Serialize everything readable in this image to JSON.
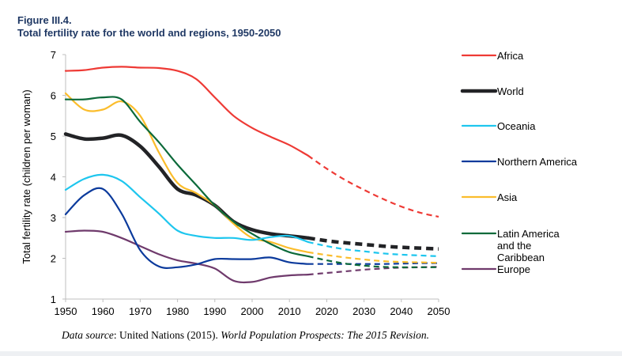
{
  "figure": {
    "label": "Figure III.4.",
    "title": "Total fertility rate for the world and regions, 1950-2050"
  },
  "source": {
    "prefix_italic": "Data source",
    "text": ": United Nations (2015). ",
    "publication_italic": "World Population Prospects: The 2015 Revision."
  },
  "chart_data": {
    "type": "line",
    "title": "Total fertility rate for the world and regions, 1950-2050",
    "xlabel": "",
    "ylabel": "Total fertility rate (children per woman)",
    "xlim": [
      1950,
      2050
    ],
    "ylim": [
      1,
      7
    ],
    "x_ticks": [
      "1950",
      "1960",
      "1970",
      "1980",
      "1990",
      "2000",
      "2010",
      "2020",
      "2030",
      "2040",
      "2050"
    ],
    "y_ticks": [
      "1",
      "2",
      "3",
      "4",
      "5",
      "6",
      "7"
    ],
    "grid": false,
    "legend_position": "right",
    "projection_start": 2015,
    "projection_style": "dashed after 2015",
    "x": [
      1950,
      1955,
      1960,
      1965,
      1970,
      1975,
      1980,
      1985,
      1990,
      1995,
      2000,
      2005,
      2010,
      2015,
      2020,
      2025,
      2030,
      2035,
      2040,
      2045,
      2050
    ],
    "series": [
      {
        "name": "Africa",
        "color": "#ee3a35",
        "emphasis": false,
        "values": [
          6.6,
          6.62,
          6.68,
          6.7,
          6.68,
          6.67,
          6.6,
          6.4,
          5.95,
          5.5,
          5.2,
          4.98,
          4.78,
          4.52,
          4.2,
          3.92,
          3.68,
          3.46,
          3.27,
          3.12,
          3.02
        ]
      },
      {
        "name": "World",
        "color": "#222326",
        "emphasis": true,
        "values": [
          5.05,
          4.93,
          4.95,
          5.02,
          4.75,
          4.25,
          3.7,
          3.55,
          3.3,
          2.9,
          2.7,
          2.6,
          2.55,
          2.5,
          2.43,
          2.38,
          2.34,
          2.3,
          2.27,
          2.25,
          2.23
        ]
      },
      {
        "name": "Oceania",
        "color": "#1ec6ee",
        "emphasis": false,
        "values": [
          3.68,
          3.95,
          4.05,
          3.9,
          3.5,
          3.1,
          2.68,
          2.55,
          2.5,
          2.5,
          2.45,
          2.52,
          2.55,
          2.4,
          2.3,
          2.22,
          2.17,
          2.12,
          2.09,
          2.07,
          2.05
        ]
      },
      {
        "name": "Northern America",
        "color": "#0b3a9c",
        "emphasis": false,
        "values": [
          3.08,
          3.55,
          3.7,
          3.1,
          2.2,
          1.8,
          1.78,
          1.85,
          1.98,
          1.98,
          1.98,
          2.02,
          1.9,
          1.86,
          1.86,
          1.86,
          1.86,
          1.86,
          1.87,
          1.88,
          1.88
        ]
      },
      {
        "name": "Asia",
        "color": "#fbbd2c",
        "emphasis": false,
        "values": [
          6.05,
          5.65,
          5.65,
          5.85,
          5.5,
          4.6,
          3.85,
          3.6,
          3.3,
          2.85,
          2.5,
          2.4,
          2.25,
          2.15,
          2.08,
          2.02,
          1.97,
          1.93,
          1.91,
          1.9,
          1.89
        ]
      },
      {
        "name": "Latin America and the Caribbean",
        "color": "#0c6a3a",
        "emphasis": false,
        "values": [
          5.9,
          5.9,
          5.95,
          5.9,
          5.35,
          4.85,
          4.3,
          3.8,
          3.3,
          2.9,
          2.6,
          2.35,
          2.15,
          2.05,
          1.95,
          1.87,
          1.82,
          1.79,
          1.78,
          1.78,
          1.78
        ]
      },
      {
        "name": "Europe",
        "color": "#6f3a6c",
        "emphasis": false,
        "values": [
          2.65,
          2.68,
          2.65,
          2.5,
          2.3,
          2.1,
          1.95,
          1.87,
          1.75,
          1.45,
          1.42,
          1.53,
          1.58,
          1.6,
          1.64,
          1.68,
          1.72,
          1.75,
          1.77,
          1.78,
          1.79
        ]
      }
    ],
    "legend": [
      {
        "label": "Africa"
      },
      {
        "label": "World"
      },
      {
        "label": "Oceania"
      },
      {
        "label": "Northern America"
      },
      {
        "label": "Asia"
      },
      {
        "label": "Latin America",
        "label_line2": "and the",
        "label_line3": "Caribbean"
      },
      {
        "label": "Europe"
      }
    ]
  }
}
